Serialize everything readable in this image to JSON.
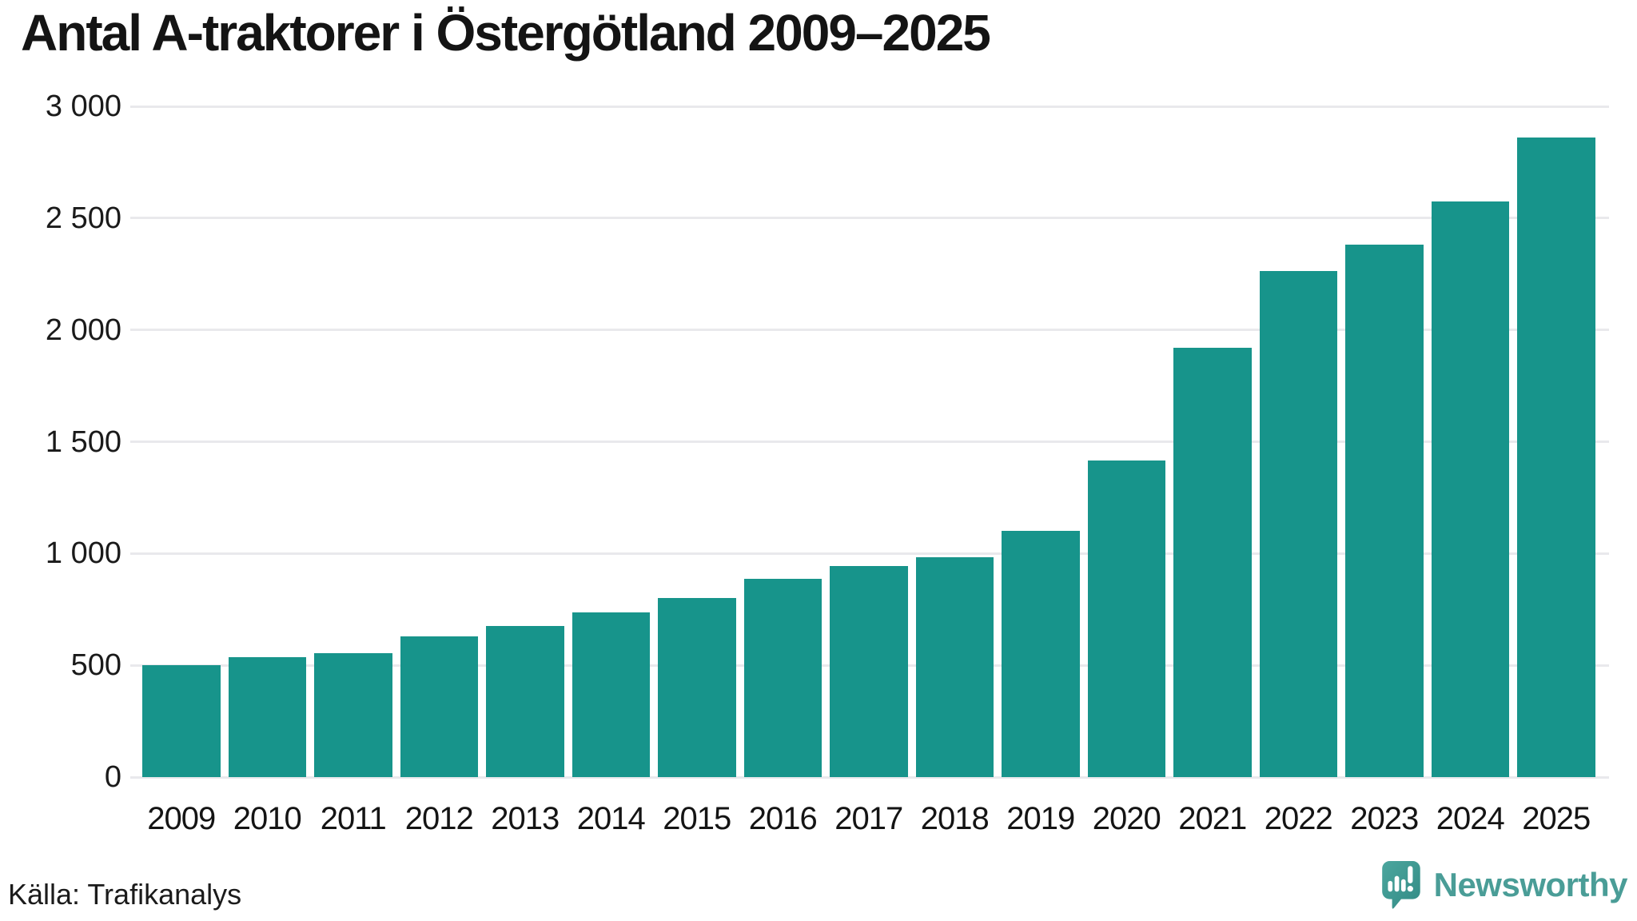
{
  "title": "Antal A-traktorer i Östergötland 2009–2025",
  "source": "Källa: Trafikanalys",
  "branding": {
    "name": "Newsworthy",
    "icon": "speech-bubble-bar-chart-icon",
    "text_color": "#4a9d97",
    "bubble_color_top": "#4ba69e",
    "bubble_color_bottom": "#338b85"
  },
  "colors": {
    "bar": "#17948b",
    "gridline": "#e9e9ec",
    "text": "#141414",
    "background": "#ffffff"
  },
  "chart_data": {
    "type": "bar",
    "title": "Antal A-traktorer i Östergötland 2009–2025",
    "categories": [
      "2009",
      "2010",
      "2011",
      "2012",
      "2013",
      "2014",
      "2015",
      "2016",
      "2017",
      "2018",
      "2019",
      "2020",
      "2021",
      "2022",
      "2023",
      "2024",
      "2025"
    ],
    "values": [
      500,
      535,
      555,
      628,
      675,
      735,
      800,
      885,
      945,
      982,
      1100,
      1415,
      1920,
      2265,
      2380,
      2575,
      2860
    ],
    "xlabel": "",
    "ylabel": "",
    "ylim": [
      0,
      3000
    ],
    "yticks": [
      {
        "value": 0,
        "label": "0"
      },
      {
        "value": 500,
        "label": "500"
      },
      {
        "value": 1000,
        "label": "1 000"
      },
      {
        "value": 1500,
        "label": "1 500"
      },
      {
        "value": 2000,
        "label": "2 000"
      },
      {
        "value": 2500,
        "label": "2 500"
      },
      {
        "value": 3000,
        "label": "3 000"
      }
    ],
    "grid": "horizontal",
    "legend": "none",
    "bar_color": "#17948b"
  }
}
